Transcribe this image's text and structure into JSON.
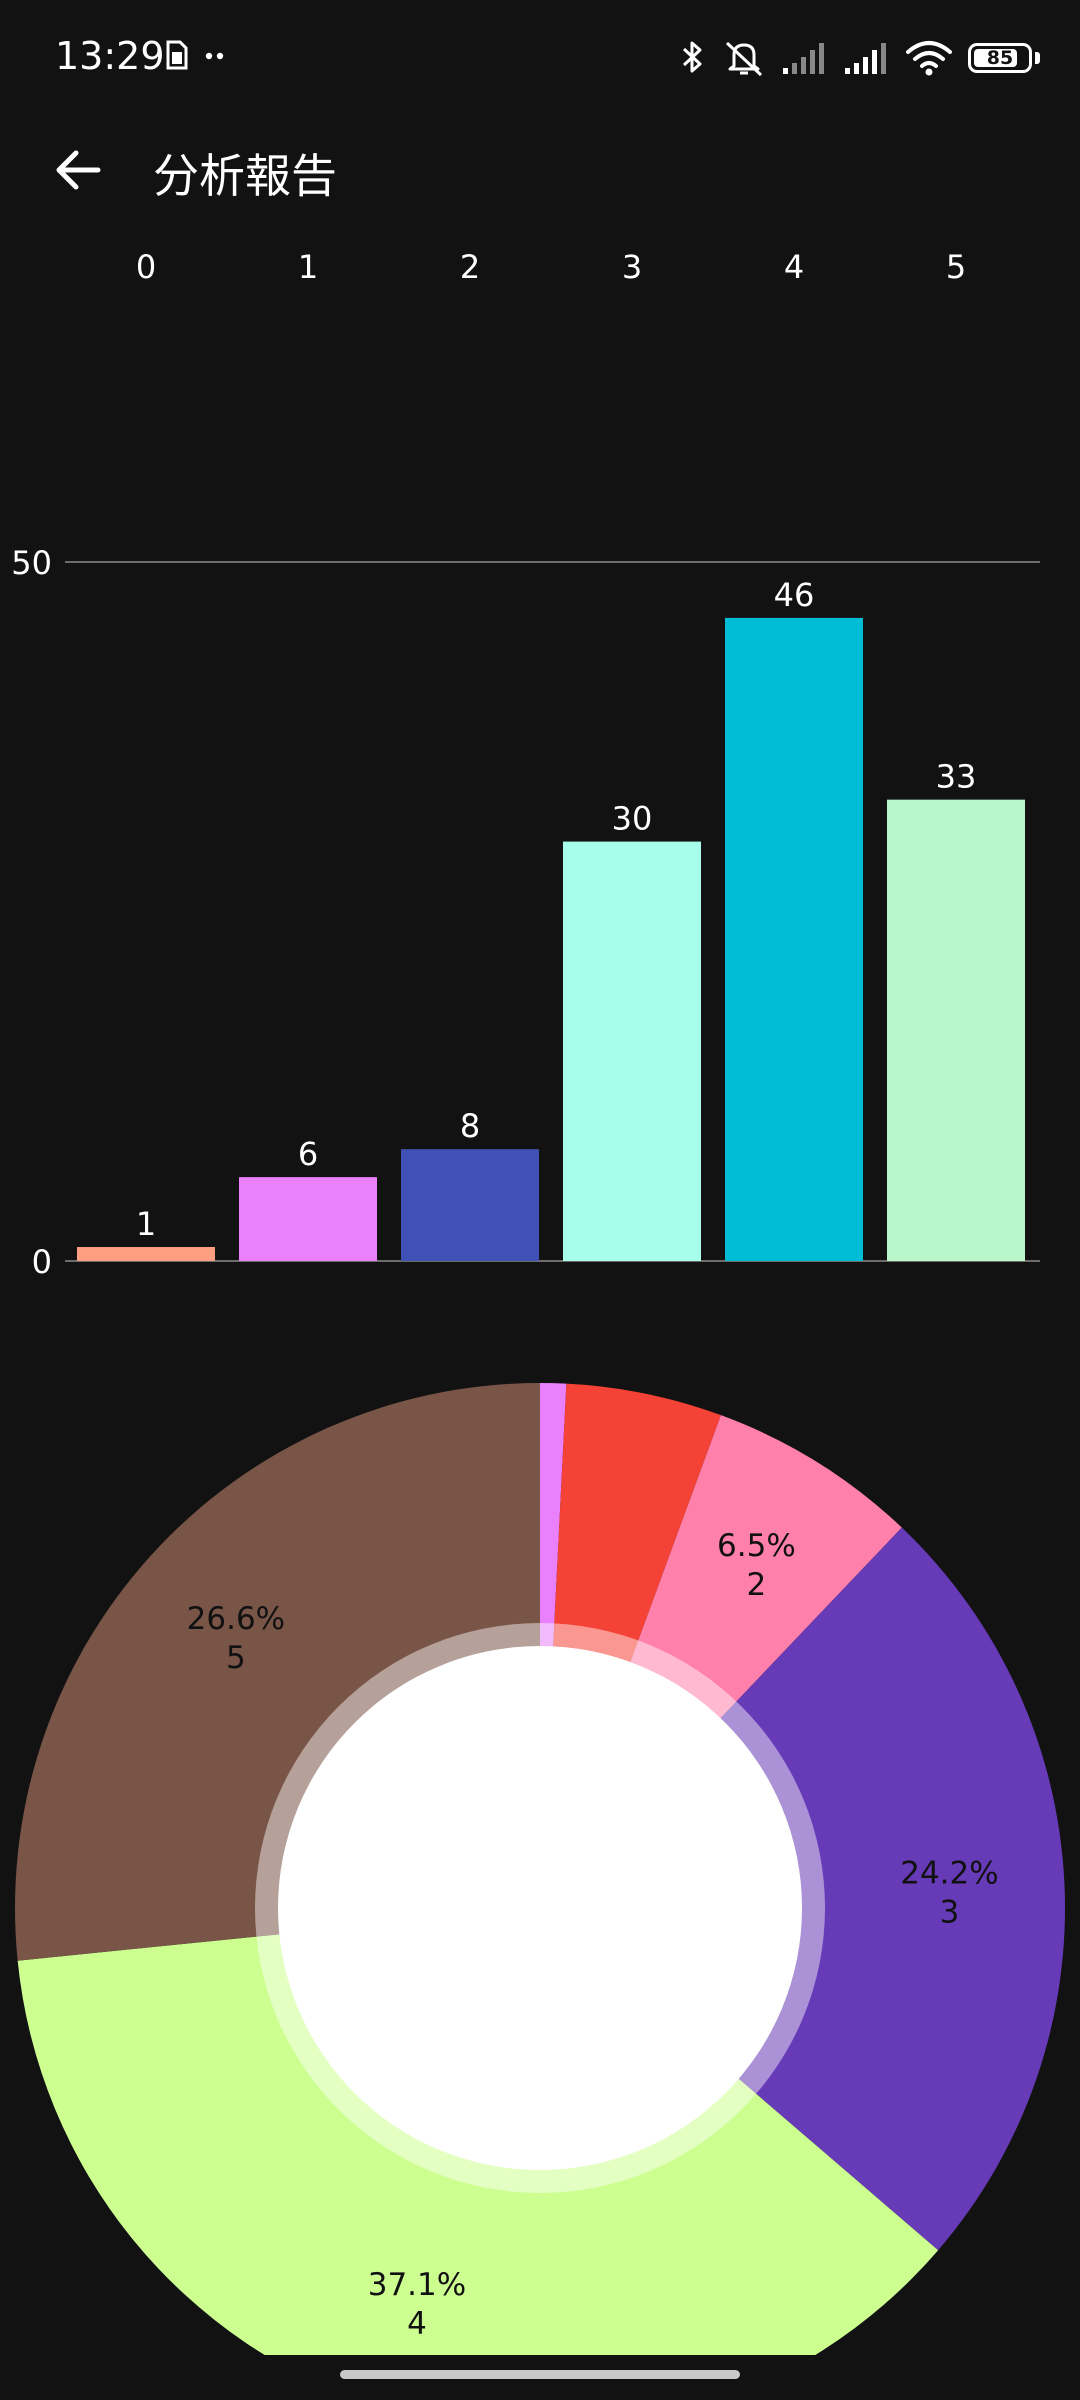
{
  "status_bar": {
    "time": "13:29",
    "left_icons": [
      "sim-card-icon",
      "more-dots-icon"
    ],
    "right_icons": [
      "bluetooth-icon",
      "mute-icon",
      "signal-icon",
      "signal-icon",
      "wifi-icon"
    ],
    "battery": {
      "level": 85,
      "label": "85"
    }
  },
  "app_bar": {
    "back_icon": "arrow-left-icon",
    "title": "分析報告"
  },
  "chart_data": [
    {
      "type": "bar",
      "categories": [
        "0",
        "1",
        "2",
        "3",
        "4",
        "5"
      ],
      "values": [
        1,
        6,
        8,
        30,
        46,
        33
      ],
      "value_labels": [
        "1",
        "6",
        "8",
        "30",
        "46",
        "33"
      ],
      "colors": [
        "#ff9e80",
        "#ea80fc",
        "#3f51b5",
        "#a7ffeb",
        "#00bcd4",
        "#b9f6ca"
      ],
      "y_ticks": [
        0,
        50
      ],
      "y_tick_labels": [
        "0",
        "50"
      ],
      "ylim": [
        0,
        50
      ],
      "x_axis_position": "top",
      "grid": true
    },
    {
      "type": "pie",
      "style": "donut",
      "slices": [
        {
          "value": 0.8,
          "label": "",
          "color": "#ea80fc"
        },
        {
          "value": 4.8,
          "label": "",
          "color": "#f44336"
        },
        {
          "value": 6.5,
          "label": "6.5%\n2",
          "color": "#ff80ab",
          "pct_text": "6.5%",
          "count_text": "2"
        },
        {
          "value": 24.2,
          "label": "24.2%\n3",
          "color": "#673ab7",
          "pct_text": "24.2%",
          "count_text": "3"
        },
        {
          "value": 37.1,
          "label": "37.1%\n4",
          "color": "#ccff90",
          "pct_text": "37.1%",
          "count_text": "4"
        },
        {
          "value": 26.6,
          "label": "26.6%\n5",
          "color": "#795548",
          "pct_text": "26.6%",
          "count_text": "5"
        }
      ],
      "start": "top",
      "direction": "clockwise",
      "hole_color": "#ffffff"
    }
  ]
}
